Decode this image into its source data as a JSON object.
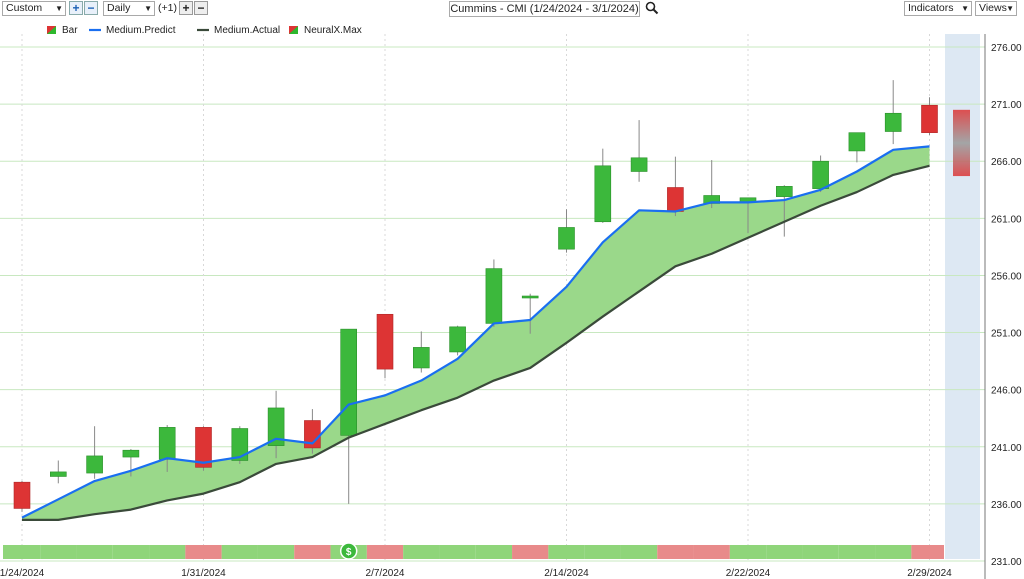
{
  "toolbar": {
    "range_select": "Custom",
    "period_select": "Daily",
    "offset_label": "(+1)",
    "chart_title": "Cummins - CMI (1/24/2024 - 3/1/2024)",
    "indicators_label": "Indicators",
    "views_label": "Views",
    "icons": [
      "plus-icon",
      "minus-icon",
      "search-icon"
    ]
  },
  "legend": [
    {
      "label": "Bar",
      "color": "#2db82d"
    },
    {
      "label": "Medium.Predict",
      "color": "#1a6ff0"
    },
    {
      "label": "Medium.Actual",
      "color": "#3a4a3a"
    },
    {
      "label": "NeuralX.Max",
      "color": "#2db82d"
    }
  ],
  "colors": {
    "up": "#3cb83c",
    "down": "#dd3434",
    "predict": "#1a6ff0",
    "actual": "#3a4a3a",
    "fill": "#9ad88a",
    "grid": "#c8e8c0"
  },
  "chart_data": {
    "type": "candlestick",
    "x_tick_labels": [
      {
        "index": 0,
        "label": "1/24/2024"
      },
      {
        "index": 5,
        "label": "1/31/2024"
      },
      {
        "index": 10,
        "label": "2/7/2024"
      },
      {
        "index": 15,
        "label": "2/14/2024"
      },
      {
        "index": 20,
        "label": "2/22/2024"
      },
      {
        "index": 25,
        "label": "2/29/2024"
      }
    ],
    "yticks": [
      "276.00",
      "271.00",
      "266.00",
      "261.00",
      "256.00",
      "251.00",
      "246.00",
      "241.00",
      "236.00",
      "231.00"
    ],
    "ylim": [
      231,
      277.5
    ],
    "dates": [
      "1/24",
      "1/25",
      "1/26",
      "1/29",
      "1/30",
      "1/31",
      "2/1",
      "2/2",
      "2/5",
      "2/6",
      "2/7",
      "2/8",
      "2/9",
      "2/12",
      "2/13",
      "2/14",
      "2/15",
      "2/16",
      "2/20",
      "2/21",
      "2/22",
      "2/23",
      "2/26",
      "2/27",
      "2/28",
      "2/29"
    ],
    "candles": [
      {
        "o": 237.9,
        "h": 238.0,
        "l": 235.3,
        "c": 235.6
      },
      {
        "o": 238.4,
        "h": 239.8,
        "l": 237.8,
        "c": 238.8
      },
      {
        "o": 238.7,
        "h": 242.8,
        "l": 238.2,
        "c": 240.2
      },
      {
        "o": 240.1,
        "h": 240.8,
        "l": 238.4,
        "c": 240.7
      },
      {
        "o": 239.9,
        "h": 242.9,
        "l": 238.8,
        "c": 242.7
      },
      {
        "o": 242.7,
        "h": 242.8,
        "l": 238.9,
        "c": 239.2
      },
      {
        "o": 239.8,
        "h": 242.8,
        "l": 239.5,
        "c": 242.6
      },
      {
        "o": 241.1,
        "h": 245.9,
        "l": 240.0,
        "c": 244.4
      },
      {
        "o": 243.3,
        "h": 244.3,
        "l": 240.4,
        "c": 240.9
      },
      {
        "o": 242.0,
        "h": 251.3,
        "l": 236.0,
        "c": 251.3
      },
      {
        "o": 252.6,
        "h": 252.6,
        "l": 247.0,
        "c": 247.8
      },
      {
        "o": 247.9,
        "h": 251.1,
        "l": 247.5,
        "c": 249.7
      },
      {
        "o": 249.3,
        "h": 251.6,
        "l": 249.0,
        "c": 251.5
      },
      {
        "o": 251.8,
        "h": 257.4,
        "l": 251.5,
        "c": 256.6
      },
      {
        "o": 254.2,
        "h": 254.4,
        "l": 250.9,
        "c": 254.2
      },
      {
        "o": 258.3,
        "h": 261.8,
        "l": 258.0,
        "c": 260.2
      },
      {
        "o": 260.7,
        "h": 267.1,
        "l": 260.6,
        "c": 265.6
      },
      {
        "o": 265.1,
        "h": 269.6,
        "l": 264.2,
        "c": 266.3
      },
      {
        "o": 263.7,
        "h": 266.4,
        "l": 261.2,
        "c": 261.6
      },
      {
        "o": 262.3,
        "h": 266.1,
        "l": 261.9,
        "c": 263.0
      },
      {
        "o": 262.4,
        "h": 262.8,
        "l": 259.7,
        "c": 262.8
      },
      {
        "o": 262.9,
        "h": 263.9,
        "l": 259.4,
        "c": 263.8
      },
      {
        "o": 263.6,
        "h": 266.5,
        "l": 263.3,
        "c": 266.0
      },
      {
        "o": 266.9,
        "h": 268.5,
        "l": 265.9,
        "c": 268.5
      },
      {
        "o": 268.6,
        "h": 273.1,
        "l": 267.5,
        "c": 270.2
      },
      {
        "o": 270.9,
        "h": 271.6,
        "l": 268.3,
        "c": 268.5
      }
    ],
    "forecast": {
      "high": 270.5,
      "low": 264.7
    },
    "series": [
      {
        "name": "Medium.Predict",
        "values": [
          234.8,
          236.4,
          238.0,
          238.9,
          240.0,
          239.6,
          240.1,
          241.7,
          241.3,
          244.7,
          245.5,
          246.8,
          248.7,
          251.8,
          252.1,
          255.0,
          258.9,
          261.7,
          261.6,
          262.4,
          262.4,
          262.6,
          263.5,
          265.1,
          267.0,
          267.3
        ]
      },
      {
        "name": "Medium.Actual",
        "values": [
          234.6,
          234.6,
          235.1,
          235.5,
          236.3,
          236.9,
          237.9,
          239.5,
          240.1,
          241.8,
          243.0,
          244.2,
          245.3,
          246.8,
          247.9,
          250.1,
          252.4,
          254.6,
          256.8,
          257.9,
          259.3,
          260.7,
          262.1,
          263.3,
          264.8,
          265.6
        ]
      }
    ],
    "signal_bar": [
      "up",
      "up",
      "up",
      "up",
      "up",
      "down",
      "up",
      "up",
      "down",
      "up",
      "down",
      "up",
      "up",
      "up",
      "down",
      "up",
      "up",
      "up",
      "down",
      "down",
      "up",
      "up",
      "up",
      "up",
      "up",
      "down"
    ]
  }
}
